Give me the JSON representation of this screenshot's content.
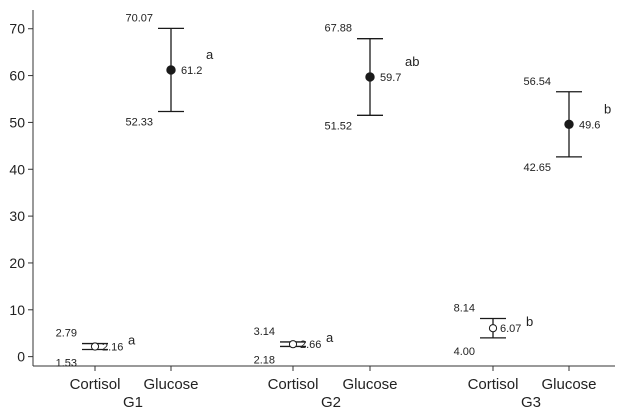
{
  "chart_data": {
    "type": "errorbar",
    "ylim": [
      -2,
      74
    ],
    "yticks": [
      0,
      10,
      20,
      30,
      40,
      50,
      60,
      70
    ],
    "groups": [
      "G1",
      "G2",
      "G3"
    ],
    "categories": [
      "Cortisol",
      "Glucose"
    ],
    "points": [
      {
        "group": "G1",
        "category": "Cortisol",
        "mean": 2.16,
        "upper": 2.79,
        "lower": 1.53,
        "mean_label": "2.16",
        "upper_label": "2.79",
        "lower_label": "1.53",
        "sig": "a",
        "marker": "open"
      },
      {
        "group": "G1",
        "category": "Glucose",
        "mean": 61.2,
        "upper": 70.07,
        "lower": 52.33,
        "mean_label": "61.2",
        "upper_label": "70.07",
        "lower_label": "52.33",
        "sig": "a",
        "marker": "filled"
      },
      {
        "group": "G2",
        "category": "Cortisol",
        "mean": 2.66,
        "upper": 3.14,
        "lower": 2.18,
        "mean_label": "2.66",
        "upper_label": "3.14",
        "lower_label": "2.18",
        "sig": "a",
        "marker": "open"
      },
      {
        "group": "G2",
        "category": "Glucose",
        "mean": 59.7,
        "upper": 67.88,
        "lower": 51.52,
        "mean_label": "59.7",
        "upper_label": "67.88",
        "lower_label": "51.52",
        "sig": "ab",
        "marker": "filled"
      },
      {
        "group": "G3",
        "category": "Cortisol",
        "mean": 6.07,
        "upper": 8.14,
        "lower": 4.0,
        "mean_label": "6.07",
        "upper_label": "8.14",
        "lower_label": "4.00",
        "sig": "b",
        "marker": "open"
      },
      {
        "group": "G3",
        "category": "Glucose",
        "mean": 49.6,
        "upper": 56.54,
        "lower": 42.65,
        "mean_label": "49.6",
        "upper_label": "56.54",
        "lower_label": "42.65",
        "sig": "b",
        "marker": "filled"
      }
    ],
    "grid": false,
    "legend": "none",
    "colors": {
      "axis": "#333333",
      "bar": "#1a1a1a",
      "text": "#222222"
    }
  }
}
